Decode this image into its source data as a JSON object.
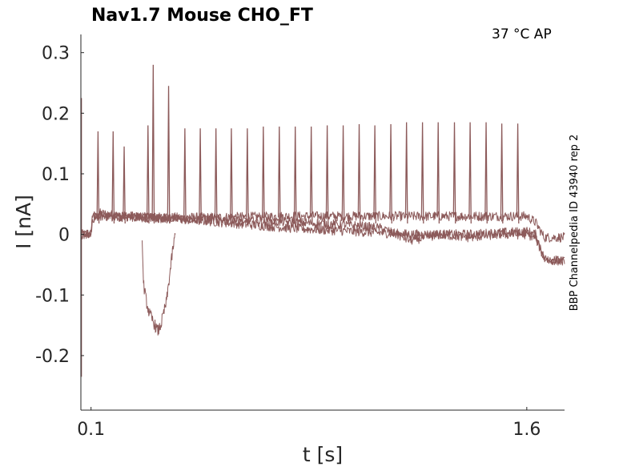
{
  "title": "Nav1.7  Mouse  CHO_FT",
  "condition": "37 °C  AP",
  "side_label": "BBP Channelpedia ID 43940 rep 2",
  "colors": {
    "trace": "#8c5a5a",
    "axis": "#262626"
  },
  "chart_data": {
    "type": "line",
    "xlabel": "t [s]",
    "ylabel": "I [nA]",
    "xlim": [
      0.065,
      1.73
    ],
    "ylim": [
      -0.29,
      0.33
    ],
    "xticks": [
      0.1,
      1.6
    ],
    "xtick_labels": [
      "0.1",
      "1.6"
    ],
    "yticks": [
      -0.2,
      -0.1,
      0,
      0.1,
      0.2,
      0.3
    ],
    "ytick_labels": [
      "-0.2",
      "-0.1",
      "0",
      "0.1",
      "0.2",
      "0.3"
    ],
    "grid": false,
    "series": [
      {
        "x": [
          0.065,
          0.08,
          0.1,
          0.104,
          0.13,
          0.2,
          0.3,
          0.5,
          0.8,
          1.0,
          1.2,
          1.4,
          1.6,
          1.63,
          1.66,
          1.73
        ],
        "values": [
          0.0,
          0.0,
          0.0,
          0.02,
          0.035,
          0.03,
          0.028,
          0.028,
          0.03,
          0.03,
          0.03,
          0.03,
          0.03,
          0.02,
          -0.005,
          -0.005
        ]
      },
      {
        "x": [
          0.065,
          0.1,
          0.104,
          0.15,
          0.25,
          0.5,
          0.8,
          1.0,
          1.2,
          1.4,
          1.6,
          1.63,
          1.66,
          1.73
        ],
        "values": [
          0.0,
          0.0,
          0.03,
          0.03,
          0.03,
          0.022,
          0.01,
          0.005,
          0.0,
          0.0,
          0.005,
          0.0,
          -0.04,
          -0.045
        ]
      },
      {
        "x": [
          0.065,
          0.1,
          0.104,
          0.15,
          0.25,
          0.5,
          0.8,
          1.0,
          1.1,
          1.2,
          1.3,
          1.4,
          1.5,
          1.6,
          1.63,
          1.66,
          1.73
        ],
        "values": [
          0.0,
          0.0,
          0.03,
          0.03,
          0.028,
          0.025,
          0.02,
          0.015,
          0.01,
          -0.01,
          0.0,
          -0.005,
          0.0,
          0.0,
          -0.005,
          -0.04,
          -0.045
        ]
      }
    ],
    "spikes": {
      "t": [
        0.124,
        0.176,
        0.214,
        0.296,
        0.314,
        0.367,
        0.423,
        0.476,
        0.53,
        0.583,
        0.638,
        0.693,
        0.748,
        0.803,
        0.858,
        0.913,
        0.968,
        1.023,
        1.077,
        1.132,
        1.186,
        1.241,
        1.295,
        1.351,
        1.405,
        1.46,
        1.514,
        1.569
      ],
      "peak": [
        0.17,
        0.17,
        0.145,
        0.18,
        0.28,
        0.245,
        0.175,
        0.175,
        0.175,
        0.175,
        0.175,
        0.178,
        0.178,
        0.178,
        0.178,
        0.18,
        0.18,
        0.182,
        0.18,
        0.182,
        0.185,
        0.185,
        0.185,
        0.185,
        0.185,
        0.185,
        0.183,
        0.183
      ]
    },
    "inward_transient": {
      "x": [
        0.276,
        0.28,
        0.29,
        0.3,
        0.31,
        0.32,
        0.33,
        0.34,
        0.35,
        0.36,
        0.37,
        0.38,
        0.39
      ],
      "values": [
        0.0,
        -0.08,
        -0.11,
        -0.13,
        -0.14,
        -0.15,
        -0.16,
        -0.15,
        -0.13,
        -0.11,
        -0.07,
        -0.03,
        0.0
      ]
    },
    "onset_transient": {
      "t": 0.067,
      "min": -0.235,
      "max": 0.225
    }
  }
}
